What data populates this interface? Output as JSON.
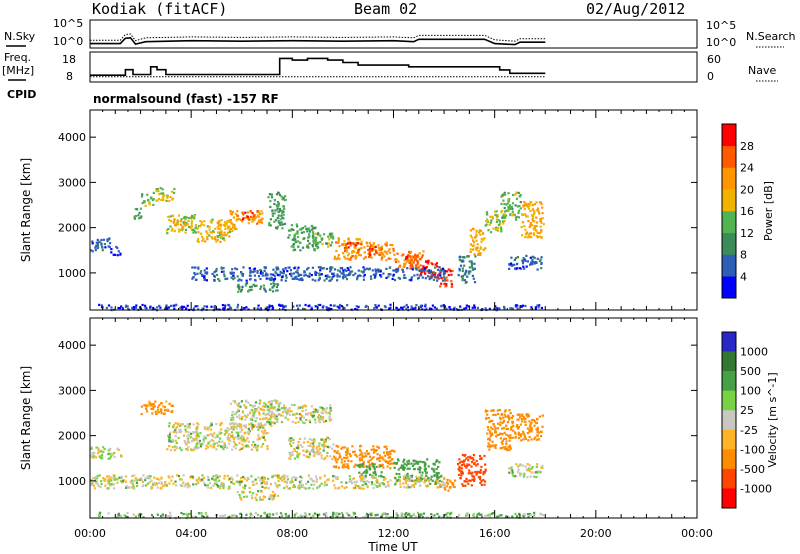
{
  "header": {
    "station": "Kodiak (fitACF)",
    "beam": "Beam 02",
    "date": "02/Aug/2012"
  },
  "side_labels": {
    "nsky": "N.Sky",
    "freq": "Freq.",
    "mhz": "[MHz]",
    "cpid": "CPID",
    "nsearch": "N.Search",
    "nave": "Nave"
  },
  "cpid_text": "normalsound (fast) -157 RF",
  "noise_axis": {
    "left_ticks": [
      "10^5",
      "10^0"
    ],
    "right_ticks": [
      "10^5",
      "10^0"
    ]
  },
  "freq_axis": {
    "left_ticks": [
      "18",
      "8"
    ],
    "right_ticks": [
      "60",
      "0"
    ]
  },
  "colors": {
    "power": [
      "#0000ff",
      "#2d5fb6",
      "#3c8c5a",
      "#50b450",
      "#f0b400",
      "#ff9600",
      "#ff5a00",
      "#ff0000"
    ],
    "velocity": [
      "#2828c8",
      "#327832",
      "#46a046",
      "#78d246",
      "#c8c8c0",
      "#ffb428",
      "#ff8c00",
      "#ff4600",
      "#ff0000"
    ]
  },
  "chart_data": [
    {
      "type": "line",
      "panel": "noise",
      "series": [
        {
          "name": "N.Sky",
          "x_hours": [
            0.0,
            1.2,
            1.4,
            1.6,
            1.8,
            2.2,
            4.0,
            6.0,
            8.0,
            10.0,
            12.0,
            12.8,
            13.0,
            15.6,
            16.0,
            16.8,
            17.0,
            18.0
          ],
          "y_log": [
            0.5,
            0.5,
            1.6,
            1.7,
            0.4,
            0.9,
            1.1,
            1.0,
            1.1,
            1.0,
            1.1,
            0.9,
            1.4,
            1.4,
            0.5,
            0.3,
            0.8,
            0.8
          ]
        },
        {
          "name": "N.Search",
          "x_hours": [
            0.0,
            1.2,
            1.4,
            1.6,
            1.8,
            2.2,
            4.0,
            6.0,
            8.0,
            10.0,
            12.0,
            12.8,
            13.0,
            15.6,
            16.0,
            16.8,
            17.0,
            18.0
          ],
          "y_log": [
            1.2,
            1.2,
            2.4,
            2.5,
            1.1,
            1.7,
            1.9,
            1.8,
            1.9,
            1.8,
            1.9,
            1.7,
            2.2,
            2.2,
            1.3,
            1.0,
            1.5,
            1.5
          ]
        }
      ]
    },
    {
      "type": "line",
      "panel": "frequency",
      "series": [
        {
          "name": "Freq.",
          "x_hours": [
            0.0,
            1.4,
            1.4,
            1.7,
            1.7,
            2.4,
            2.4,
            2.65,
            2.65,
            3.0,
            3.0,
            7.5,
            7.5,
            8.0,
            8.0,
            8.6,
            8.6,
            9.4,
            9.4,
            10.0,
            10.0,
            10.6,
            10.6,
            12.6,
            12.6,
            16.2,
            16.2,
            16.6,
            16.6,
            18.0
          ],
          "y_mhz": [
            10,
            10,
            12.3,
            12.3,
            10.3,
            10.3,
            13.5,
            13.5,
            12.3,
            12.3,
            10.3,
            10.3,
            17,
            17,
            16.3,
            16.3,
            17,
            17,
            16.3,
            16.3,
            15.3,
            15.3,
            14.2,
            14.2,
            13.5,
            13.5,
            12.2,
            12.2,
            10.8,
            10.8
          ]
        },
        {
          "name": "Nave",
          "x_hours": [
            0.0,
            18.0
          ],
          "y": [
            8,
            8
          ]
        }
      ]
    },
    {
      "type": "heatmap",
      "panel": "power",
      "x_label": "Time UT",
      "y_label": "Slant Range [km]",
      "x_ticks": [
        "00:00",
        "04:00",
        "08:00",
        "12:00",
        "16:00",
        "20:00",
        "00:00"
      ],
      "x_range_hours": [
        0,
        24
      ],
      "y_range_km": [
        180,
        4600
      ],
      "y_ticks": [
        1000,
        2000,
        3000,
        4000
      ],
      "colorbar": {
        "label": "Power [dB]",
        "ticks": [
          4,
          8,
          12,
          16,
          20,
          24,
          28
        ],
        "range": [
          0,
          32
        ]
      },
      "blobs": [
        {
          "t": [
            0.0,
            0.8
          ],
          "r": [
            1500,
            1800
          ],
          "v": 6
        },
        {
          "t": [
            0.8,
            1.2
          ],
          "r": [
            1400,
            1600
          ],
          "v": 5
        },
        {
          "t": [
            1.7,
            2.0
          ],
          "r": [
            2200,
            2500
          ],
          "v": 12
        },
        {
          "t": [
            2.0,
            2.5
          ],
          "r": [
            2500,
            2800
          ],
          "v": 14
        },
        {
          "t": [
            2.5,
            3.3
          ],
          "r": [
            2600,
            2900
          ],
          "v": 16
        },
        {
          "t": [
            3.0,
            4.2
          ],
          "r": [
            1900,
            2300
          ],
          "v": 16
        },
        {
          "t": [
            3.2,
            3.8
          ],
          "r": [
            2000,
            2200
          ],
          "v": 22
        },
        {
          "t": [
            4.2,
            5.5
          ],
          "r": [
            1700,
            2200
          ],
          "v": 18
        },
        {
          "t": [
            5.0,
            5.8
          ],
          "r": [
            1900,
            2200
          ],
          "v": 20
        },
        {
          "t": [
            5.5,
            6.8
          ],
          "r": [
            2100,
            2400
          ],
          "v": 22
        },
        {
          "t": [
            6.0,
            6.6
          ],
          "r": [
            2200,
            2400
          ],
          "v": 26
        },
        {
          "t": [
            7.0,
            7.7
          ],
          "r": [
            2000,
            2800
          ],
          "v": 12
        },
        {
          "t": [
            5.8,
            7.4
          ],
          "r": [
            600,
            800
          ],
          "v": 10
        },
        {
          "t": [
            7.8,
            9.0
          ],
          "r": [
            1500,
            2100
          ],
          "v": 12
        },
        {
          "t": [
            8.8,
            9.6
          ],
          "r": [
            1600,
            1900
          ],
          "v": 14
        },
        {
          "t": [
            9.6,
            10.8
          ],
          "r": [
            1300,
            1800
          ],
          "v": 22
        },
        {
          "t": [
            10.0,
            10.6
          ],
          "r": [
            1500,
            1700
          ],
          "v": 28
        },
        {
          "t": [
            10.8,
            12.0
          ],
          "r": [
            1300,
            1700
          ],
          "v": 22
        },
        {
          "t": [
            11.0,
            11.5
          ],
          "r": [
            1400,
            1600
          ],
          "v": 28
        },
        {
          "t": [
            12.0,
            13.0
          ],
          "r": [
            1100,
            1500
          ],
          "v": 24
        },
        {
          "t": [
            12.4,
            13.2
          ],
          "r": [
            1200,
            1500
          ],
          "v": 26
        },
        {
          "t": [
            13.0,
            13.8
          ],
          "r": [
            900,
            1300
          ],
          "v": 30
        },
        {
          "t": [
            13.8,
            14.3
          ],
          "r": [
            700,
            1100
          ],
          "v": 28
        },
        {
          "t": [
            14.5,
            15.2
          ],
          "r": [
            800,
            1400
          ],
          "v": 8
        },
        {
          "t": [
            15.0,
            15.6
          ],
          "r": [
            1400,
            2000
          ],
          "v": 20
        },
        {
          "t": [
            15.6,
            16.4
          ],
          "r": [
            1900,
            2400
          ],
          "v": 16
        },
        {
          "t": [
            16.2,
            17.0
          ],
          "r": [
            2200,
            2800
          ],
          "v": 14
        },
        {
          "t": [
            17.0,
            17.9
          ],
          "r": [
            1800,
            2600
          ],
          "v": 20
        },
        {
          "t": [
            16.5,
            17.9
          ],
          "r": [
            1100,
            1400
          ],
          "v": 6
        },
        {
          "t": [
            4.0,
            14.0
          ],
          "r": [
            850,
            1150
          ],
          "v": 6
        },
        {
          "t": [
            0.3,
            17.9
          ],
          "r": [
            200,
            320
          ],
          "v": 4
        }
      ]
    },
    {
      "type": "heatmap",
      "panel": "velocity",
      "x_label": "Time UT",
      "y_label": "Slant Range [km]",
      "x_ticks": [
        "00:00",
        "04:00",
        "08:00",
        "12:00",
        "16:00",
        "20:00",
        "00:00"
      ],
      "x_range_hours": [
        0,
        24
      ],
      "y_range_km": [
        180,
        4600
      ],
      "y_ticks": [
        1000,
        2000,
        3000,
        4000
      ],
      "colorbar": {
        "label": "Velocity [m s^-1]",
        "ticks": [
          "1000",
          "500",
          "100",
          "25",
          "-25",
          "-100",
          "-500",
          "-1000"
        ]
      },
      "blobs": [
        {
          "t": [
            0.0,
            1.2
          ],
          "r": [
            1500,
            1800
          ],
          "v": 0
        },
        {
          "t": [
            2.0,
            3.3
          ],
          "r": [
            2500,
            2800
          ],
          "v": -150
        },
        {
          "t": [
            3.0,
            7.0
          ],
          "r": [
            1700,
            2300
          ],
          "v": 0
        },
        {
          "t": [
            5.5,
            7.5
          ],
          "r": [
            2200,
            2800
          ],
          "v": 0
        },
        {
          "t": [
            7.0,
            9.5
          ],
          "r": [
            2300,
            2700
          ],
          "v": 0
        },
        {
          "t": [
            5.8,
            7.4
          ],
          "r": [
            600,
            800
          ],
          "v": 0
        },
        {
          "t": [
            7.8,
            9.6
          ],
          "r": [
            1500,
            2000
          ],
          "v": 0
        },
        {
          "t": [
            9.6,
            12.0
          ],
          "r": [
            1300,
            1800
          ],
          "v": -200
        },
        {
          "t": [
            10.5,
            11.5
          ],
          "r": [
            1100,
            1400
          ],
          "v": 150
        },
        {
          "t": [
            12.0,
            13.8
          ],
          "r": [
            1000,
            1500
          ],
          "v": 150
        },
        {
          "t": [
            13.8,
            14.4
          ],
          "r": [
            800,
            1100
          ],
          "v": -150
        },
        {
          "t": [
            14.5,
            15.6
          ],
          "r": [
            900,
            1600
          ],
          "v": -600
        },
        {
          "t": [
            15.6,
            16.6
          ],
          "r": [
            1700,
            2600
          ],
          "v": -200
        },
        {
          "t": [
            16.6,
            17.9
          ],
          "r": [
            1900,
            2500
          ],
          "v": -300
        },
        {
          "t": [
            16.5,
            17.9
          ],
          "r": [
            1100,
            1400
          ],
          "v": 0
        },
        {
          "t": [
            0.0,
            14.0
          ],
          "r": [
            850,
            1150
          ],
          "v": 0
        },
        {
          "t": [
            0.3,
            17.9
          ],
          "r": [
            200,
            320
          ],
          "v": 60
        }
      ]
    }
  ]
}
